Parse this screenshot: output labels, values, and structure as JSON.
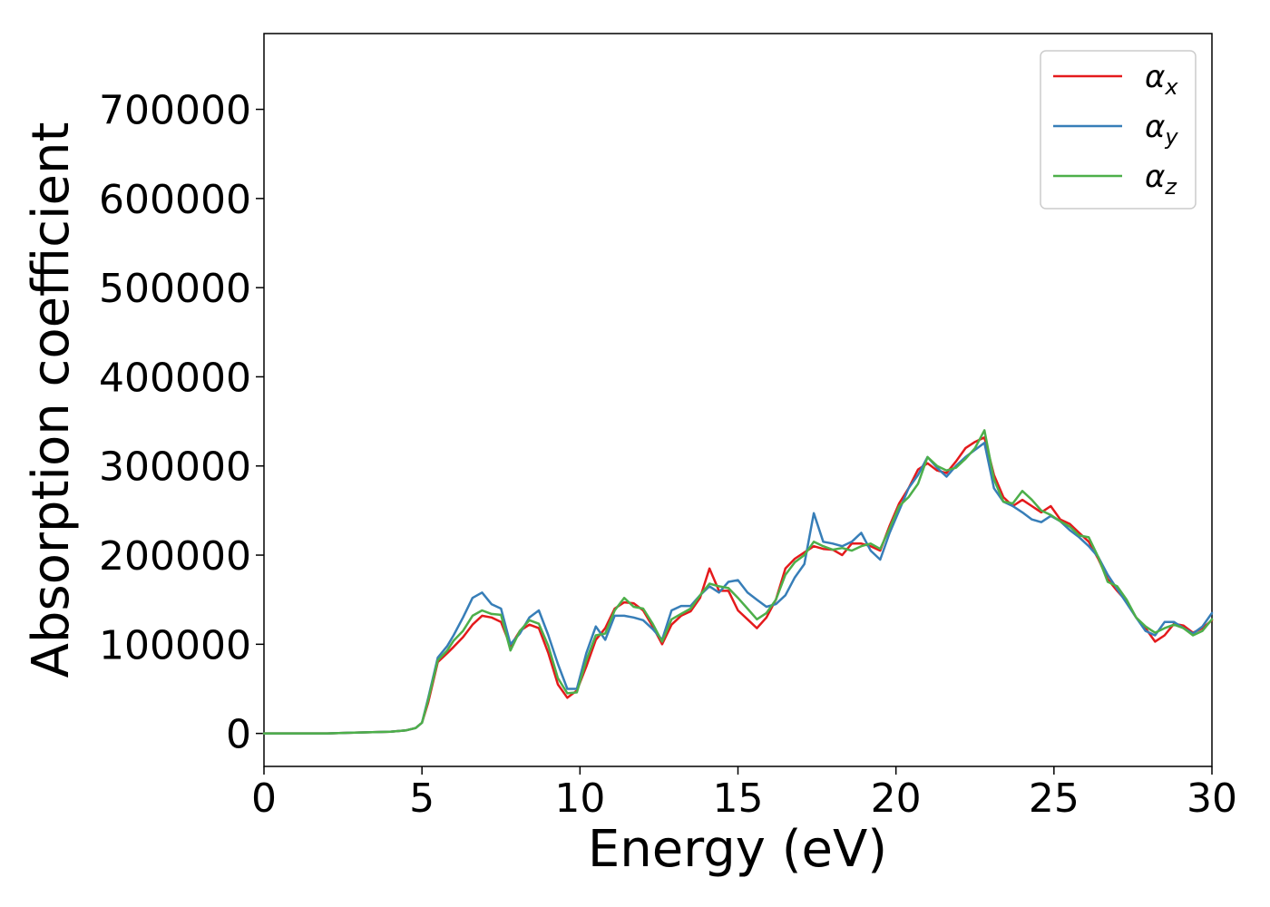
{
  "chart_data": {
    "type": "line",
    "xlabel": "Energy (eV)",
    "ylabel": "Absorption coefficient",
    "xlim": [
      0,
      30
    ],
    "ylim": [
      -37000,
      785000
    ],
    "xticks": [
      "0",
      "5",
      "10",
      "15",
      "20",
      "25",
      "30"
    ],
    "yticks": [
      "0",
      "100000",
      "200000",
      "300000",
      "400000",
      "500000",
      "600000",
      "700000"
    ],
    "grid": false,
    "legend_position": "top-right",
    "x": [
      0,
      1,
      2,
      3,
      4,
      4.5,
      4.8,
      5.0,
      5.2,
      5.5,
      5.8,
      6.0,
      6.3,
      6.6,
      6.9,
      7.2,
      7.5,
      7.8,
      8.1,
      8.4,
      8.7,
      9.0,
      9.3,
      9.6,
      9.9,
      10.2,
      10.5,
      10.8,
      11.1,
      11.4,
      11.7,
      12.0,
      12.3,
      12.6,
      12.9,
      13.2,
      13.5,
      13.8,
      14.1,
      14.4,
      14.7,
      15.0,
      15.3,
      15.6,
      15.9,
      16.2,
      16.5,
      16.8,
      17.1,
      17.4,
      17.7,
      18.0,
      18.3,
      18.6,
      18.9,
      19.2,
      19.5,
      19.8,
      20.1,
      20.4,
      20.7,
      21.0,
      21.3,
      21.6,
      21.9,
      22.2,
      22.5,
      22.8,
      23.1,
      23.4,
      23.7,
      24.0,
      24.3,
      24.6,
      24.9,
      25.2,
      25.5,
      25.8,
      26.1,
      26.4,
      26.7,
      27.0,
      27.3,
      27.6,
      27.9,
      28.2,
      28.5,
      28.8,
      29.1,
      29.4,
      29.7,
      30.0
    ],
    "series": [
      {
        "name": "α_x",
        "color": "#e41a1c",
        "values": [
          0,
          0,
          0,
          1000,
          2000,
          3500,
          6000,
          12000,
          35000,
          80000,
          90000,
          97000,
          108000,
          122000,
          132000,
          130000,
          125000,
          98000,
          115000,
          122000,
          118000,
          90000,
          55000,
          40000,
          48000,
          75000,
          105000,
          118000,
          140000,
          147000,
          146000,
          138000,
          120000,
          100000,
          122000,
          132000,
          137000,
          152000,
          185000,
          160000,
          160000,
          138000,
          128000,
          118000,
          130000,
          150000,
          185000,
          196000,
          203000,
          210000,
          207000,
          206000,
          200000,
          213000,
          213000,
          210000,
          205000,
          233000,
          258000,
          275000,
          296000,
          303000,
          295000,
          292000,
          305000,
          320000,
          327000,
          332000,
          290000,
          265000,
          255000,
          262000,
          255000,
          248000,
          255000,
          240000,
          235000,
          225000,
          215000,
          196000,
          173000,
          160000,
          148000,
          130000,
          118000,
          103000,
          110000,
          123000,
          121000,
          113000,
          118000,
          127000
        ]
      },
      {
        "name": "α_y",
        "color": "#377eb8",
        "values": [
          0,
          0,
          0,
          1000,
          2000,
          3500,
          6000,
          12000,
          40000,
          85000,
          98000,
          110000,
          130000,
          152000,
          158000,
          145000,
          140000,
          100000,
          112000,
          130000,
          138000,
          110000,
          78000,
          50000,
          50000,
          90000,
          120000,
          105000,
          132000,
          132000,
          130000,
          127000,
          117000,
          105000,
          138000,
          143000,
          143000,
          155000,
          165000,
          158000,
          170000,
          172000,
          158000,
          150000,
          142000,
          145000,
          155000,
          175000,
          190000,
          247000,
          215000,
          213000,
          210000,
          215000,
          225000,
          205000,
          195000,
          225000,
          250000,
          275000,
          290000,
          310000,
          298000,
          288000,
          300000,
          310000,
          318000,
          326000,
          275000,
          260000,
          255000,
          248000,
          240000,
          237000,
          244000,
          238000,
          228000,
          220000,
          210000,
          198000,
          178000,
          162000,
          146000,
          130000,
          115000,
          110000,
          125000,
          125000,
          118000,
          112000,
          120000,
          135000
        ]
      },
      {
        "name": "α_z",
        "color": "#4daf4a",
        "values": [
          0,
          0,
          0,
          1000,
          2000,
          3500,
          6000,
          12000,
          38000,
          82000,
          93000,
          104000,
          115000,
          132000,
          138000,
          134000,
          133000,
          93000,
          115000,
          127000,
          123000,
          98000,
          62000,
          45000,
          46000,
          82000,
          110000,
          112000,
          138000,
          152000,
          142000,
          140000,
          123000,
          103000,
          128000,
          134000,
          140000,
          155000,
          168000,
          165000,
          163000,
          152000,
          140000,
          128000,
          135000,
          150000,
          178000,
          192000,
          200000,
          215000,
          210000,
          206000,
          208000,
          205000,
          210000,
          213000,
          207000,
          230000,
          255000,
          265000,
          280000,
          310000,
          300000,
          295000,
          298000,
          308000,
          320000,
          340000,
          285000,
          260000,
          258000,
          272000,
          262000,
          250000,
          245000,
          238000,
          232000,
          222000,
          220000,
          198000,
          170000,
          165000,
          150000,
          130000,
          120000,
          113000,
          118000,
          122000,
          118000,
          110000,
          115000,
          128000
        ]
      }
    ],
    "legend": {
      "entries": [
        {
          "main": "α",
          "sub": "x",
          "color": "#e41a1c"
        },
        {
          "main": "α",
          "sub": "y",
          "color": "#377eb8"
        },
        {
          "main": "α",
          "sub": "z",
          "color": "#4daf4a"
        }
      ]
    }
  }
}
